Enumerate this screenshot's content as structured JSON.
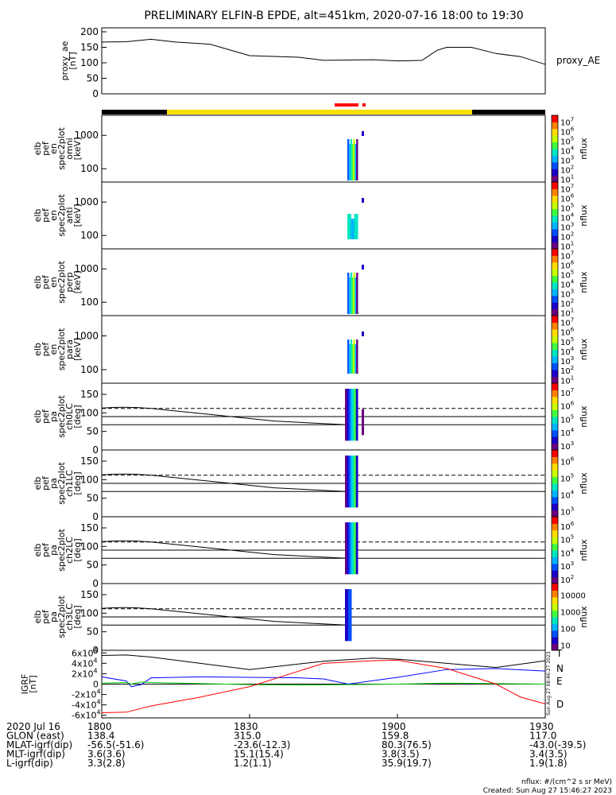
{
  "title": "PRELIMINARY ELFIN-B EPDE, alt=451km, 2020-07-16 18:00 to 19:30",
  "colors": {
    "orbit_day": "#f7e000",
    "orbit_night": "#000000",
    "science": "#ff0000",
    "trace": "#000000",
    "n_comp": "#0000ff",
    "e_comp": "#00cc00",
    "d_comp": "#ff0000"
  },
  "chart_data": [
    {
      "type": "line",
      "name": "proxy_ae",
      "ylabel": "proxy_ae\n[nT]",
      "legend": "proxy_AE",
      "ylim": [
        0,
        200
      ],
      "yticks": [
        "0",
        "50",
        "100",
        "150",
        "200"
      ],
      "x": [
        0,
        5,
        10,
        15,
        22,
        30,
        40,
        45,
        55,
        60,
        65,
        68,
        70,
        75,
        80,
        85,
        90
      ],
      "y": [
        167,
        168,
        176,
        167,
        160,
        123,
        118,
        108,
        110,
        106,
        108,
        140,
        150,
        150,
        130,
        120,
        95
      ]
    },
    {
      "type": "heatmap",
      "name": "omni",
      "ylabel": "elb\npef\nen\nspec2plot\nomni\n[keV]",
      "yticks": [
        "100",
        "1000"
      ],
      "cbar_ticks": [
        "10^1",
        "10^2",
        "10^3",
        "10^4",
        "10^5",
        "10^6",
        "10^7"
      ],
      "cbar_label": "nflux"
    },
    {
      "type": "heatmap",
      "name": "anti",
      "ylabel": "elb\npef\nen\nspec2plot\nanti\n[keV]",
      "yticks": [
        "100",
        "1000"
      ],
      "cbar_ticks": [
        "10^1",
        "10^2",
        "10^3",
        "10^4",
        "10^5",
        "10^6",
        "10^7"
      ],
      "cbar_label": "nflux"
    },
    {
      "type": "heatmap",
      "name": "perp",
      "ylabel": "elb\npef\nen\nspec2plot\nperp\n[keV]",
      "yticks": [
        "100",
        "1000"
      ],
      "cbar_ticks": [
        "10^1",
        "10^2",
        "10^3",
        "10^4",
        "10^5",
        "10^6",
        "10^7"
      ],
      "cbar_label": "nflux"
    },
    {
      "type": "heatmap",
      "name": "para",
      "ylabel": "elb\npef\nen\nspec2plot\npara\n[keV]",
      "yticks": [
        "100",
        "1000"
      ],
      "cbar_ticks": [
        "10^1",
        "10^2",
        "10^3",
        "10^4",
        "10^5",
        "10^6",
        "10^7"
      ],
      "cbar_label": "nflux"
    },
    {
      "type": "heatmap",
      "name": "ch0LC",
      "ylabel": "elb\npef\npa\nspec2plot\nch0LC\n[deg]",
      "yticks": [
        "0",
        "50",
        "100",
        "150"
      ],
      "cbar_ticks": [
        "10^3",
        "10^4",
        "10^5",
        "10^6",
        "10^7"
      ],
      "cbar_label": "nflux"
    },
    {
      "type": "heatmap",
      "name": "ch1LC",
      "ylabel": "elb\npef\npa\nspec2plot\nch1LC\n[deg]",
      "yticks": [
        "0",
        "50",
        "100",
        "150"
      ],
      "cbar_ticks": [
        "10^3",
        "10^4",
        "10^5",
        "10^6"
      ],
      "cbar_label": "nflux"
    },
    {
      "type": "heatmap",
      "name": "ch2LC",
      "ylabel": "elb\npef\npa\nspec2plot\nch2LC\n[deg]",
      "yticks": [
        "0",
        "50",
        "100",
        "150"
      ],
      "cbar_ticks": [
        "10^2",
        "10^3",
        "10^4",
        "10^5",
        "10^6"
      ],
      "cbar_label": "nflux"
    },
    {
      "type": "heatmap",
      "name": "ch3LC",
      "ylabel": "elb\npef\npa\nspec2plot\nch3LC\n[deg]",
      "yticks": [
        "0",
        "50",
        "100",
        "150"
      ],
      "cbar_ticks": [
        "10",
        "100",
        "1000",
        "10000"
      ],
      "cbar_label": "nflux"
    },
    {
      "type": "line",
      "name": "igrf",
      "ylabel": "IGRF\n[nT]",
      "yticks": [
        "-6x10^4",
        "-4x10^4",
        "-2x10^4",
        "0",
        "2x10^4",
        "4x10^4",
        "6x10^4"
      ],
      "ylim": [
        -65000,
        65000
      ],
      "legend": [
        "T",
        "N",
        "E",
        "D"
      ],
      "series": [
        {
          "name": "T",
          "x": [
            0,
            5,
            10,
            20,
            30,
            45,
            50,
            55,
            60,
            70,
            80,
            90
          ],
          "y": [
            55000,
            56000,
            52000,
            40000,
            28000,
            44000,
            47000,
            50000,
            48000,
            40000,
            32000,
            45000
          ]
        },
        {
          "name": "N",
          "x": [
            0,
            5,
            6,
            8,
            10,
            20,
            30,
            40,
            45,
            50,
            60,
            70,
            80,
            90
          ],
          "y": [
            14000,
            6000,
            -5000,
            -1000,
            12000,
            14000,
            13000,
            12000,
            10000,
            0,
            13000,
            28000,
            30000,
            25000
          ]
        },
        {
          "name": "E",
          "x": [
            0,
            5,
            6,
            8,
            10,
            20,
            30,
            40,
            50,
            60,
            70,
            80,
            90
          ],
          "y": [
            2000,
            3000,
            0,
            4000,
            3000,
            1000,
            -1000,
            -2000,
            -1000,
            0,
            2000,
            1000,
            0
          ]
        },
        {
          "name": "D",
          "x": [
            0,
            5,
            10,
            20,
            30,
            45,
            55,
            60,
            70,
            80,
            85,
            90
          ],
          "y": [
            -55000,
            -54000,
            -42000,
            -25000,
            -5000,
            40000,
            45000,
            46000,
            30000,
            0,
            -25000,
            -38000
          ]
        }
      ]
    }
  ],
  "x_axis": {
    "ticks": [
      "1800",
      "1830",
      "1900",
      "1930"
    ],
    "rows": [
      {
        "label": "2020 Jul 16",
        "values": [
          "",
          "",
          "",
          ""
        ]
      },
      {
        "label": "GLON (east)",
        "values": [
          "138.4",
          "315.0",
          "159.8",
          "117.0"
        ]
      },
      {
        "label": "MLAT-igrf(dip)",
        "values": [
          "-56.5(-51.6)",
          "-23.6(-12.3)",
          "80.3(76.5)",
          "-43.0(-39.5)"
        ]
      },
      {
        "label": "MLT-igrf(dip)",
        "values": [
          "3.6(3.6)",
          "15.1(15.4)",
          "3.8(3.5)",
          "3.4(3.5)"
        ]
      },
      {
        "label": "L-igrf(dip)",
        "values": [
          "3.3(2.8)",
          "1.2(1.1)",
          "35.9(19.7)",
          "1.9(1.8)"
        ]
      }
    ]
  },
  "footer": {
    "units": "nflux: #/(cm^2 s sr MeV)",
    "created": "Created: Sun Aug 27 15:46:27 2023",
    "stamp": "Sun Aug 27 08:46:27 2023"
  }
}
